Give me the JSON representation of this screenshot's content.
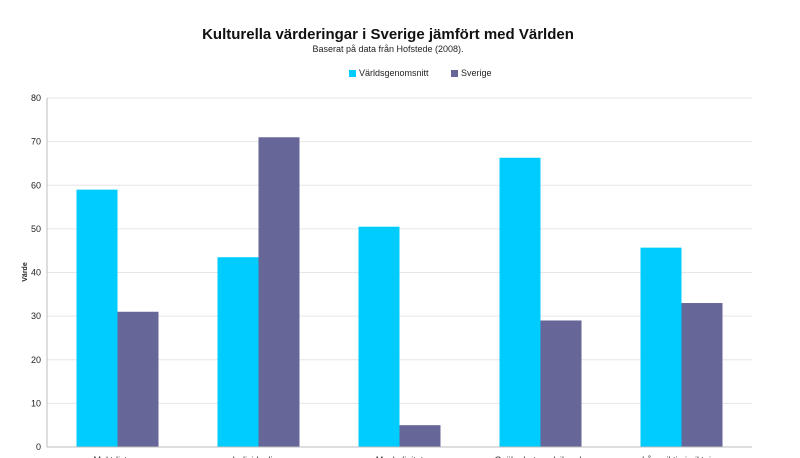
{
  "chart_data": {
    "type": "bar",
    "title": "Kulturella värderingar i Sverige jämfört med Världen",
    "subtitle": "Baserat på data från Hofstede (2008).",
    "ylabel": "Värde",
    "xlabel": "",
    "ylim": [
      0,
      80
    ],
    "yticks": [
      0,
      10,
      20,
      30,
      40,
      50,
      60,
      70,
      80
    ],
    "grid": true,
    "legend_position": "top-center",
    "categories": [
      "Maktdistans",
      "Individualism",
      "Maskulinitet",
      "Osäkerhetsundvikande",
      "Långsiktig inriktning"
    ],
    "series": [
      {
        "name": "Världsgenomsnitt",
        "color": "#00ccff",
        "values": [
          59,
          43.5,
          50.5,
          66.3,
          45.7
        ]
      },
      {
        "name": "Sverige",
        "color": "#666699",
        "values": [
          31,
          71,
          5,
          29,
          33
        ]
      }
    ]
  }
}
